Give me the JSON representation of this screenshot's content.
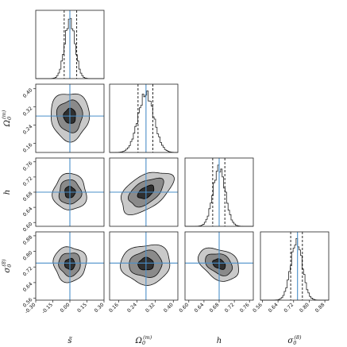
{
  "chart_data": {
    "type": "corner",
    "parameters": [
      {
        "key": "s",
        "label": "s̃",
        "sup": "",
        "truth": 0.0,
        "lim": [
          -0.3,
          0.3
        ],
        "ticks": [
          "-0.30",
          "-0.15",
          "0.00",
          "0.15",
          "0.30"
        ],
        "tick_values": [
          -0.3,
          -0.15,
          0.0,
          0.15,
          0.3
        ],
        "quantiles": [
          -0.05,
          0.06
        ],
        "mean": 0.0,
        "sigma": 0.045
      },
      {
        "key": "om",
        "label": "Ω",
        "sub": "0",
        "sup": "(m)",
        "truth": 0.28,
        "lim": [
          0.12,
          0.42
        ],
        "ticks": [
          "0.16",
          "0.24",
          "0.32",
          "0.40"
        ],
        "tick_values": [
          0.16,
          0.24,
          0.32,
          0.4
        ],
        "quantiles": [
          0.245,
          0.31
        ],
        "mean": 0.28,
        "sigma": 0.035
      },
      {
        "key": "h",
        "label": "h",
        "sup": "",
        "truth": 0.68,
        "lim": [
          0.59,
          0.77
        ],
        "ticks": [
          "0.60",
          "0.64",
          "0.68",
          "0.72",
          "0.76"
        ],
        "tick_values": [
          0.6,
          0.64,
          0.68,
          0.72,
          0.76
        ],
        "quantiles": [
          0.663,
          0.695
        ],
        "mean": 0.68,
        "sigma": 0.016
      },
      {
        "key": "s8",
        "label": "σ",
        "sub": "0",
        "sup": "(8)",
        "truth": 0.74,
        "lim": [
          0.55,
          0.9
        ],
        "ticks": [
          "0.56",
          "0.64",
          "0.72",
          "0.80",
          "0.88"
        ],
        "tick_values": [
          0.56,
          0.64,
          0.72,
          0.8,
          0.88
        ],
        "quantiles": [
          0.705,
          0.765
        ],
        "mean": 0.735,
        "sigma": 0.03
      }
    ],
    "correlations": {
      "om-s": 0.0,
      "h-s": 0.0,
      "h-om": -0.65,
      "s8-s": 0.0,
      "s8-om": -0.1,
      "s8-h": 0.55
    },
    "contour_levels": [
      "1-sigma",
      "2-sigma",
      "3-sigma"
    ],
    "colors": {
      "truth_line": "#4a8fc9",
      "fill_outer": "#c9c9c9",
      "fill_mid": "#8a8a8a",
      "fill_inner": "#2f2f2f",
      "histogram": "#222222",
      "quantile_line": "#111111"
    }
  }
}
